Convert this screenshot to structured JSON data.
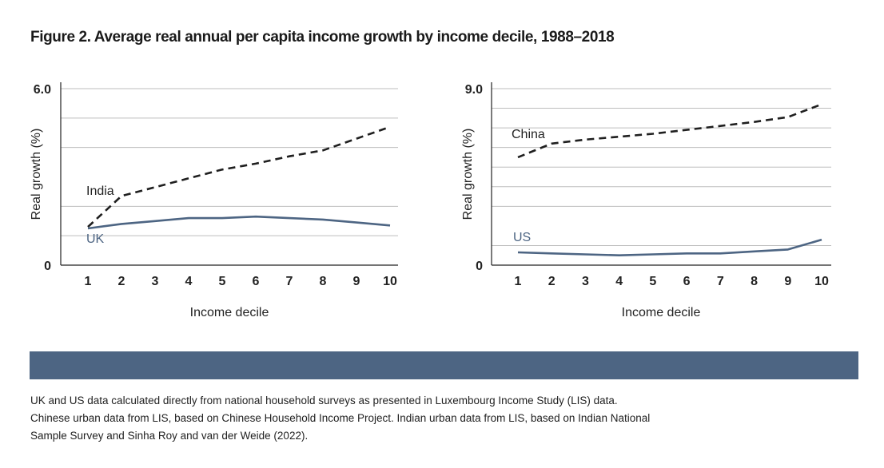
{
  "title": "Figure 2. Average real annual per capita income growth by income decile, 1988–2018",
  "colors": {
    "band": "#4d6583",
    "gold": "#1f1f1f",
    "blue": "#4d6583",
    "grid": "#bdbdbd",
    "axis": "#222222"
  },
  "note": "UK and US data calculated directly from national household surveys as presented in Luxembourg Income Study (LIS) data. Chinese urban data from LIS, based on Chinese Household Income Project. Indian urban data from LIS, based on Indian National Sample Survey and Sinha Roy and van der Weide (2022).",
  "chart_data": [
    {
      "type": "line",
      "xlabel": "Income decile",
      "ylabel": "Real growth (%)",
      "x": [
        1,
        2,
        3,
        4,
        5,
        6,
        7,
        8,
        9,
        10
      ],
      "ylim": [
        0,
        6.0
      ],
      "yticks": [
        {
          "value": 0,
          "label": "0"
        },
        {
          "value": 6.0,
          "label": "6.0"
        }
      ],
      "gridlines": [
        1.0,
        2.0,
        4.0,
        5.0,
        6.0
      ],
      "series": [
        {
          "name": "India",
          "style": "dashed",
          "values": [
            1.3,
            2.35,
            2.65,
            2.95,
            3.25,
            3.45,
            3.7,
            3.9,
            4.3,
            4.7
          ]
        },
        {
          "name": "UK",
          "style": "solid",
          "values": [
            1.25,
            1.4,
            1.5,
            1.6,
            1.6,
            1.65,
            1.6,
            1.55,
            1.45,
            1.35
          ]
        }
      ],
      "legend": "inline"
    },
    {
      "type": "line",
      "xlabel": "Income decile",
      "ylabel": "Real growth (%)",
      "x": [
        1,
        2,
        3,
        4,
        5,
        6,
        7,
        8,
        9,
        10
      ],
      "ylim": [
        0,
        9.0
      ],
      "yticks": [
        {
          "value": 0,
          "label": "0"
        },
        {
          "value": 9.0,
          "label": "9.0"
        }
      ],
      "gridlines": [
        1.0,
        3.0,
        4.0,
        5.0,
        6.0,
        7.0,
        8.0,
        9.0
      ],
      "series": [
        {
          "name": "China",
          "style": "dashed",
          "values": [
            5.5,
            6.2,
            6.4,
            6.55,
            6.7,
            6.9,
            7.1,
            7.3,
            7.55,
            8.2
          ]
        },
        {
          "name": "US",
          "style": "solid",
          "values": [
            0.65,
            0.6,
            0.55,
            0.5,
            0.55,
            0.6,
            0.6,
            0.7,
            0.8,
            1.3
          ]
        }
      ],
      "legend": "inline"
    }
  ]
}
